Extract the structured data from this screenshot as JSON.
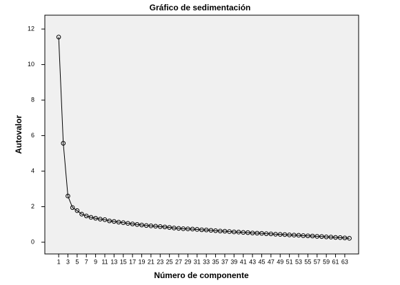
{
  "chart_data": {
    "type": "line",
    "title": "Gráfico de sedimentación",
    "xlabel": "Número de componente",
    "ylabel": "Autovalor",
    "x": [
      1,
      2,
      3,
      4,
      5,
      6,
      7,
      8,
      9,
      10,
      11,
      12,
      13,
      14,
      15,
      16,
      17,
      18,
      19,
      20,
      21,
      22,
      23,
      24,
      25,
      26,
      27,
      28,
      29,
      30,
      31,
      32,
      33,
      34,
      35,
      36,
      37,
      38,
      39,
      40,
      41,
      42,
      43,
      44,
      45,
      46,
      47,
      48,
      49,
      50,
      51,
      52,
      53,
      54,
      55,
      56,
      57,
      58,
      59,
      60,
      61,
      62,
      63,
      64
    ],
    "values": [
      11.55,
      5.57,
      2.6,
      1.95,
      1.78,
      1.58,
      1.48,
      1.4,
      1.35,
      1.3,
      1.27,
      1.2,
      1.17,
      1.13,
      1.1,
      1.06,
      1.03,
      1.0,
      0.97,
      0.94,
      0.92,
      0.9,
      0.88,
      0.86,
      0.83,
      0.8,
      0.78,
      0.76,
      0.75,
      0.74,
      0.72,
      0.7,
      0.69,
      0.67,
      0.65,
      0.63,
      0.62,
      0.6,
      0.58,
      0.57,
      0.55,
      0.54,
      0.52,
      0.51,
      0.5,
      0.48,
      0.47,
      0.45,
      0.44,
      0.43,
      0.41,
      0.4,
      0.39,
      0.37,
      0.36,
      0.35,
      0.33,
      0.32,
      0.3,
      0.29,
      0.27,
      0.26,
      0.24,
      0.22
    ],
    "color": "#000000",
    "xlim": [
      -2,
      66
    ],
    "ylim": [
      -0.66,
      12.78
    ],
    "xticks": [
      1,
      3,
      5,
      7,
      9,
      11,
      13,
      15,
      17,
      19,
      21,
      23,
      25,
      27,
      29,
      31,
      33,
      35,
      37,
      39,
      41,
      43,
      45,
      47,
      49,
      51,
      53,
      55,
      57,
      59,
      61,
      63
    ],
    "yticks": [
      0,
      2,
      4,
      6,
      8,
      10,
      12
    ]
  }
}
